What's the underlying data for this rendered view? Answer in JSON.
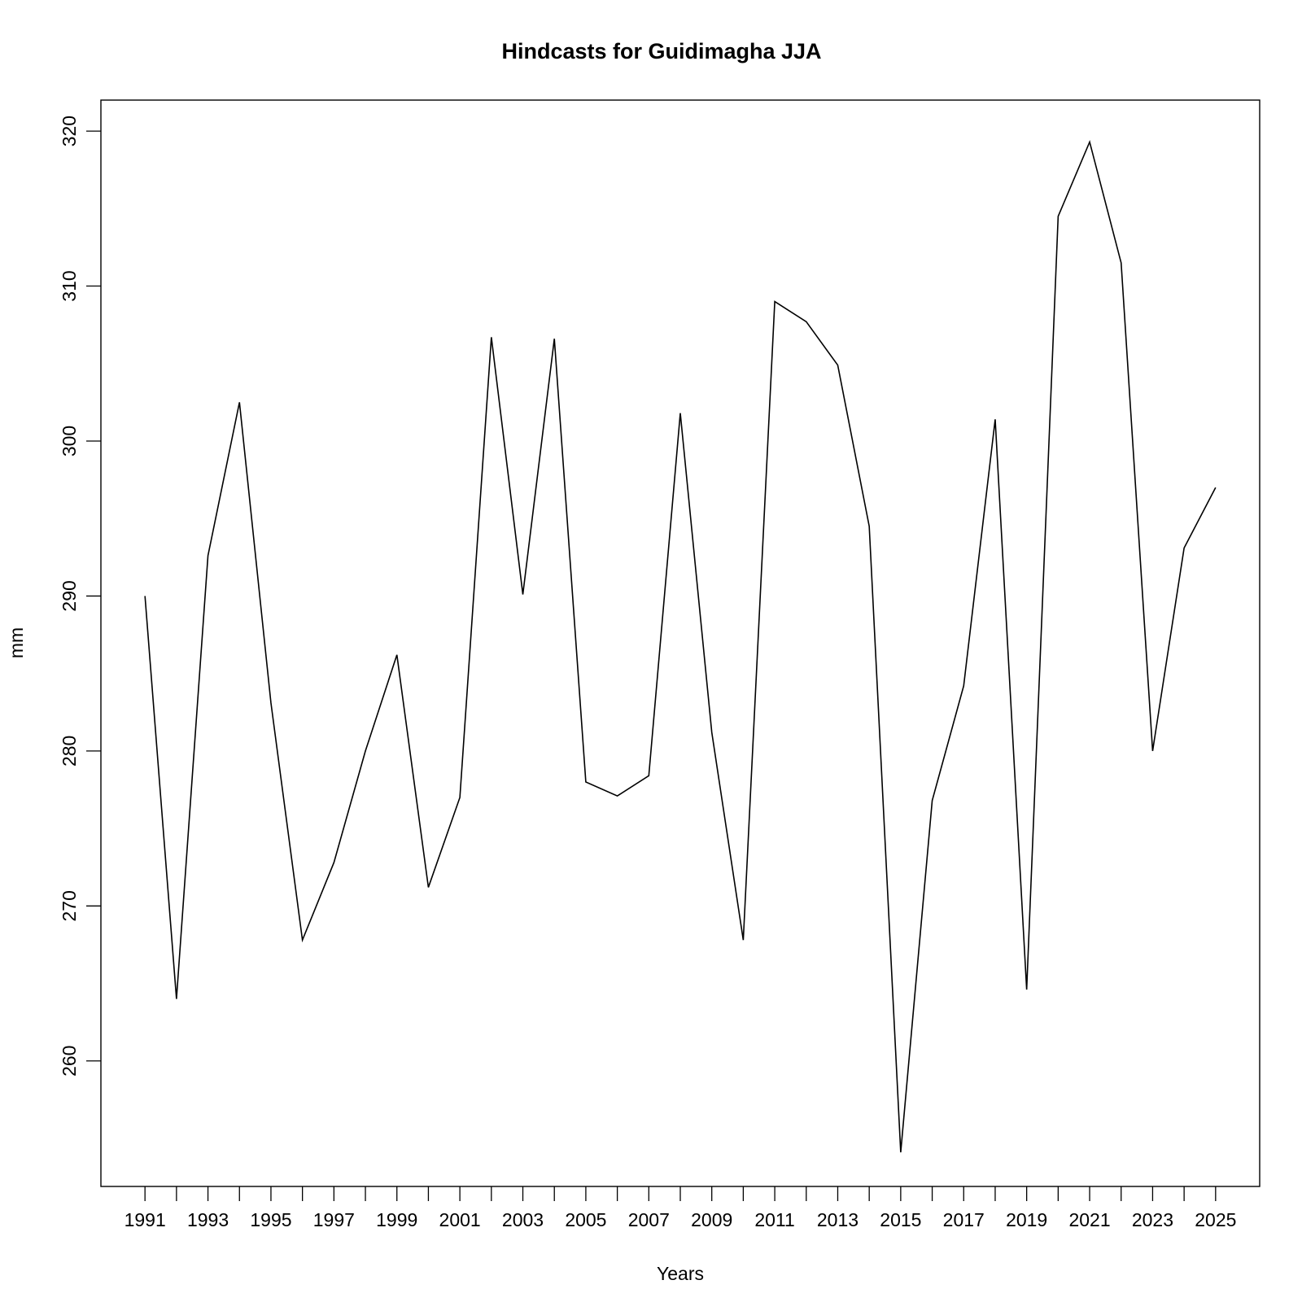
{
  "chart_data": {
    "type": "line",
    "title": "Hindcasts for Guidimagha JJA",
    "xlabel": "Years",
    "ylabel": "mm",
    "x": [
      1991,
      1992,
      1993,
      1994,
      1995,
      1996,
      1997,
      1998,
      1999,
      2000,
      2001,
      2002,
      2003,
      2004,
      2005,
      2006,
      2007,
      2008,
      2009,
      2010,
      2011,
      2012,
      2013,
      2014,
      2015,
      2016,
      2017,
      2018,
      2019,
      2020,
      2021,
      2022,
      2023,
      2024,
      2025
    ],
    "series": [
      {
        "values": [
          290.0,
          264.0,
          292.6,
          302.5,
          283.1,
          267.8,
          272.8,
          280.0,
          286.2,
          271.2,
          277.0,
          306.7,
          290.1,
          306.6,
          278.0,
          277.1,
          278.4,
          301.8,
          281.2,
          267.8,
          309.0,
          307.7,
          304.9,
          294.5,
          254.1,
          276.8,
          284.2,
          301.4,
          264.6,
          314.5,
          319.3,
          311.5,
          280.0,
          293.1,
          297.0
        ]
      }
    ],
    "xticks": [
      "1991",
      "1993",
      "1995",
      "1997",
      "1999",
      "2001",
      "2003",
      "2005",
      "2007",
      "2009",
      "2011",
      "2013",
      "2015",
      "2017",
      "2019",
      "2021",
      "2023",
      "2025"
    ],
    "yticks": [
      "260",
      "270",
      "280",
      "290",
      "300",
      "310",
      "320"
    ],
    "xlim": [
      1989.6,
      2026.4
    ],
    "ylim": [
      251.9,
      322.0
    ],
    "grid": false,
    "legend": "none",
    "line_color": "#000000"
  }
}
